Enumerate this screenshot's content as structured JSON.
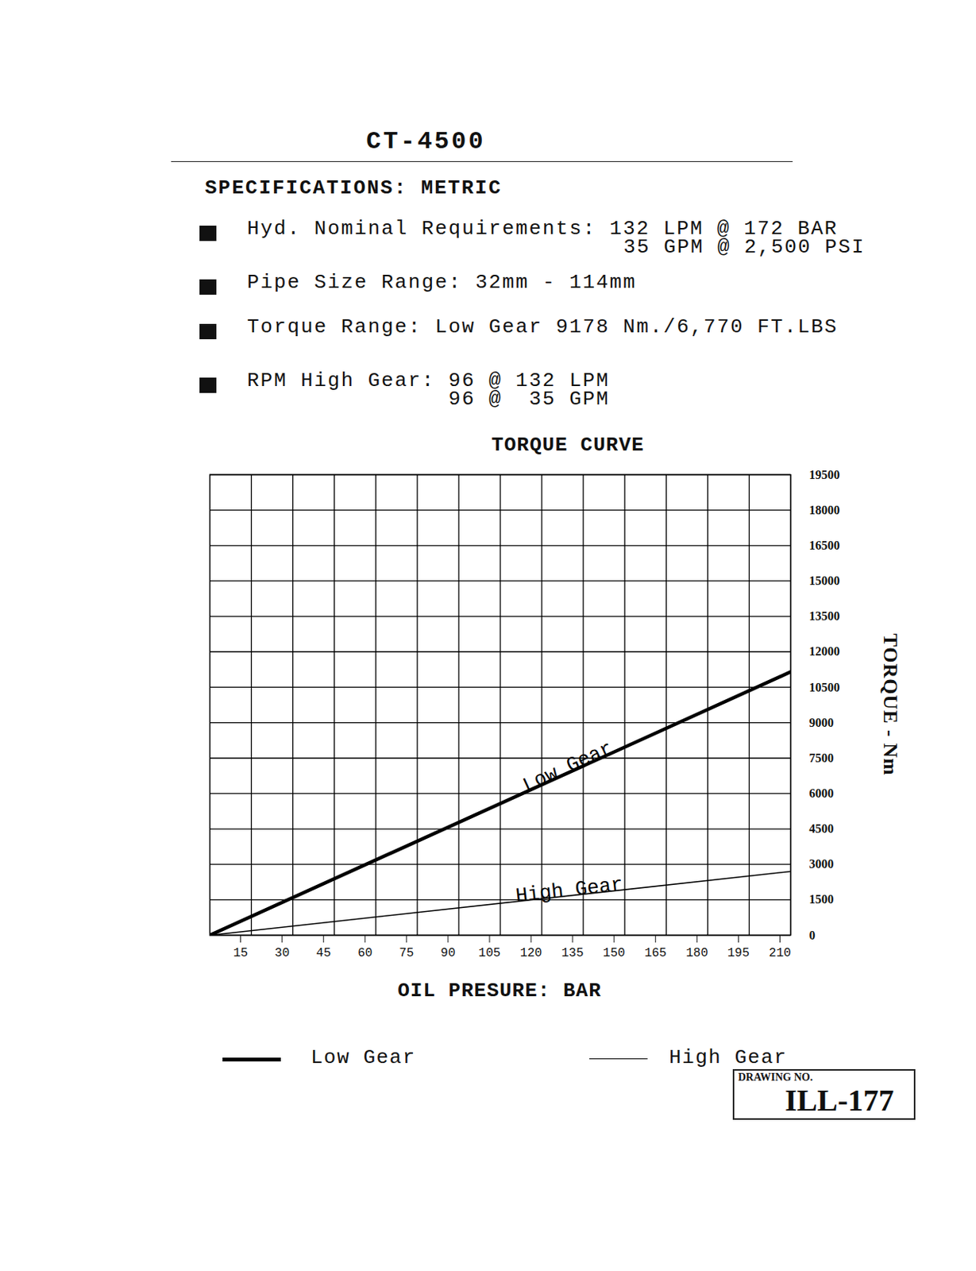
{
  "header": {
    "title": "CT-4500",
    "subtitle": "SPECIFICATIONS: METRIC"
  },
  "specs": [
    {
      "label": "Hyd. Nominal Requirements:",
      "values": [
        "132 LPM @ 172 BAR",
        "35 GPM @ 2,500 PSI"
      ]
    },
    {
      "label": "Pipe Size Range:",
      "values": [
        "32mm - 114mm"
      ]
    },
    {
      "label": "Torque Range:",
      "values": [
        "Low Gear 9178 Nm./6,770 FT.LBS"
      ]
    },
    {
      "label": "RPM High Gear:",
      "values": [
        "96 @ 132 LPM",
        "96 @  35 GPM"
      ]
    }
  ],
  "chart_data": {
    "type": "line",
    "title": "TORQUE CURVE",
    "x_label": "OIL PRESURE: BAR",
    "y_label": "TORQUE - Nm",
    "x": [
      0,
      210
    ],
    "series": [
      {
        "name": "Low Gear",
        "color": "#000000",
        "values": [
          0,
          11150
        ]
      },
      {
        "name": "High Gear",
        "color": "#000000",
        "values": [
          0,
          2700
        ]
      }
    ],
    "xlim": [
      0,
      210
    ],
    "ylim": [
      0,
      19500
    ],
    "xticks": [
      15,
      30,
      45,
      60,
      75,
      90,
      105,
      120,
      135,
      150,
      165,
      180,
      195,
      210
    ],
    "yticks": [
      0,
      1500,
      3000,
      4500,
      6000,
      7500,
      9000,
      10500,
      12000,
      13500,
      15000,
      16500,
      18000,
      19500
    ],
    "grid": true,
    "legend": "bottom"
  },
  "drawing": {
    "label": "DRAWING NO.",
    "number": "ILL-177"
  }
}
